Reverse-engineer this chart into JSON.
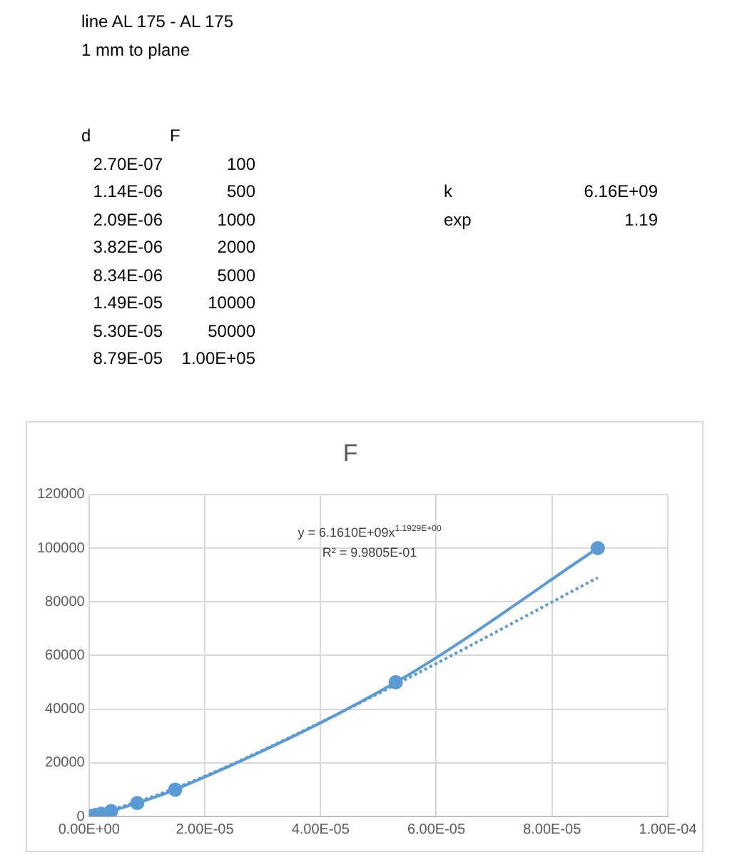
{
  "chart_data": [
    {
      "type": "other",
      "title": "line AL 175 - AL 175",
      "subtitle": "1 mm to plane",
      "annotations": [
        "d",
        "F",
        "2.70E-07",
        "100",
        "1.14E-06",
        "500",
        "2.09E-06",
        "1000",
        "3.82E-06",
        "2000",
        "8.34E-06",
        "5000",
        "1.49E-05",
        "10000",
        "5.30E-05",
        "50000",
        "8.79E-05",
        "1.00E+05",
        "k",
        "6.16E+09",
        "exp",
        "1.19"
      ]
    },
    {
      "type": "line",
      "title": "F",
      "marker": "circle",
      "grid": true,
      "legend": false,
      "x": [
        2.7e-07,
        1.14e-06,
        2.09e-06,
        3.82e-06,
        8.34e-06,
        1.49e-05,
        5.3e-05,
        8.79e-05
      ],
      "series": [
        {
          "color": "#5b9bd5",
          "values": [
            100,
            500,
            1000,
            2000,
            5000,
            10000,
            50000,
            100000
          ]
        },
        {
          "type": "line",
          "color": "#5b9bd5",
          "line_style": "dotted",
          "marker": "none",
          "x": [
            2.7e-07,
            1e-05,
            2e-05,
            4e-05,
            6e-05,
            8.79e-05
          ],
          "values": [
            100,
            6700,
            15000,
            35000,
            57000,
            89000
          ]
        }
      ],
      "xlim": [
        0,
        0.0001
      ],
      "xticks": [
        {
          "value": 0,
          "label": "0.00E+00"
        },
        {
          "value": 2e-05,
          "label": "2.00E-05"
        },
        {
          "value": 4e-05,
          "label": "4.00E-05"
        },
        {
          "value": 6e-05,
          "label": "6.00E-05"
        },
        {
          "value": 8e-05,
          "label": "8.00E-05"
        },
        {
          "value": 0.0001,
          "label": "1.00E-04"
        }
      ],
      "ylim": [
        0,
        120000
      ],
      "yticks": [
        0,
        20000,
        40000,
        60000,
        80000,
        100000,
        120000
      ],
      "annotations": [
        "y = 6.1610E+09x$^{1.1929E+00}$",
        "R² = 9.9805E-01"
      ]
    }
  ]
}
